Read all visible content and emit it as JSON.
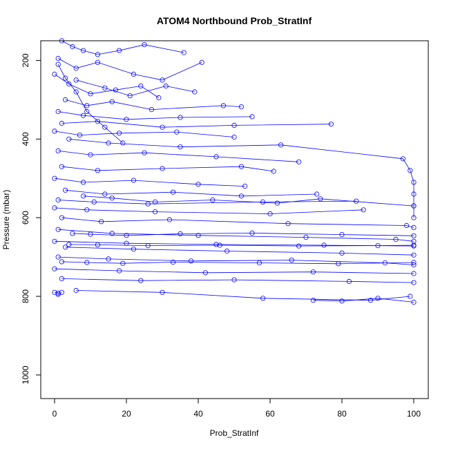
{
  "chart_data": {
    "type": "line",
    "title": "ATOM4 Northbound Prob_StratInf",
    "xlabel": "Prob_StratInf",
    "ylabel": "Pressure (mbar)",
    "xlim": [
      0,
      100
    ],
    "ylim": [
      150,
      1060
    ],
    "y_reversed": true,
    "x_ticks": [
      0,
      20,
      40,
      60,
      80,
      100
    ],
    "y_ticks": [
      200,
      400,
      600,
      800,
      1000
    ],
    "series_color": "#0000ff",
    "marker": "open-circle",
    "grid": false,
    "series": [
      {
        "name": "",
        "x": [
          2,
          5,
          8,
          12,
          18,
          25,
          36
        ],
        "y": [
          150,
          165,
          175,
          185,
          175,
          160,
          180
        ]
      },
      {
        "name": "",
        "x": [
          1,
          6,
          12,
          22,
          30,
          41
        ],
        "y": [
          195,
          220,
          205,
          235,
          250,
          205
        ]
      },
      {
        "name": "",
        "x": [
          0,
          4,
          10,
          17,
          24,
          29
        ],
        "y": [
          235,
          260,
          285,
          275,
          265,
          295
        ]
      },
      {
        "name": "",
        "x": [
          3,
          9,
          16,
          27,
          47,
          52
        ],
        "y": [
          300,
          315,
          305,
          325,
          315,
          318
        ]
      },
      {
        "name": "",
        "x": [
          1,
          8,
          20,
          35,
          55
        ],
        "y": [
          330,
          340,
          350,
          345,
          343
        ]
      },
      {
        "name": "",
        "x": [
          2,
          12,
          30,
          50,
          77
        ],
        "y": [
          360,
          355,
          370,
          365,
          362
        ]
      },
      {
        "name": "",
        "x": [
          0,
          7,
          18,
          34,
          50
        ],
        "y": [
          380,
          390,
          385,
          382,
          395
        ]
      },
      {
        "name": "",
        "x": [
          4,
          15,
          35,
          63,
          97,
          99,
          100,
          100,
          100,
          100
        ],
        "y": [
          400,
          410,
          420,
          415,
          450,
          480,
          510,
          540,
          570,
          600
        ]
      },
      {
        "name": "",
        "x": [
          1,
          10,
          25,
          45,
          68
        ],
        "y": [
          430,
          440,
          435,
          445,
          458
        ]
      },
      {
        "name": "",
        "x": [
          2,
          12,
          30,
          52,
          61
        ],
        "y": [
          470,
          480,
          475,
          470,
          482
        ]
      },
      {
        "name": "",
        "x": [
          0,
          8,
          22,
          40,
          53
        ],
        "y": [
          500,
          510,
          505,
          515,
          520
        ]
      },
      {
        "name": "",
        "x": [
          3,
          14,
          33,
          52,
          73
        ],
        "y": [
          530,
          540,
          535,
          545,
          540
        ]
      },
      {
        "name": "",
        "x": [
          1,
          11,
          26,
          58,
          84
        ],
        "y": [
          555,
          560,
          565,
          560,
          558
        ]
      },
      {
        "name": "",
        "x": [
          0,
          9,
          28,
          60,
          86
        ],
        "y": [
          575,
          580,
          585,
          590,
          580
        ]
      },
      {
        "name": "",
        "x": [
          2,
          13,
          32,
          65,
          98,
          100
        ],
        "y": [
          600,
          610,
          605,
          615,
          620,
          625
        ]
      },
      {
        "name": "",
        "x": [
          1,
          16,
          40,
          70,
          95,
          100
        ],
        "y": [
          630,
          640,
          645,
          650,
          655,
          660
        ]
      },
      {
        "name": "",
        "x": [
          0,
          20,
          45,
          75,
          100
        ],
        "y": [
          660,
          665,
          668,
          670,
          672
        ]
      },
      {
        "name": "",
        "x": [
          3,
          22,
          48,
          80,
          100
        ],
        "y": [
          675,
          680,
          685,
          690,
          695
        ]
      },
      {
        "name": "",
        "x": [
          1,
          15,
          38,
          66,
          92,
          100
        ],
        "y": [
          700,
          705,
          710,
          708,
          715,
          720
        ]
      },
      {
        "name": "",
        "x": [
          0,
          18,
          42,
          72,
          100
        ],
        "y": [
          730,
          735,
          740,
          738,
          742
        ]
      },
      {
        "name": "",
        "x": [
          2,
          24,
          50,
          82,
          100
        ],
        "y": [
          755,
          760,
          758,
          762,
          765
        ]
      },
      {
        "name": "",
        "x": [
          6,
          30,
          58,
          88,
          99
        ],
        "y": [
          785,
          790,
          805,
          810,
          800
        ]
      },
      {
        "name": "",
        "x": [
          0,
          1,
          1,
          2
        ],
        "y": [
          790,
          792,
          795,
          790
        ]
      },
      {
        "name": "",
        "x": [
          72,
          80,
          90,
          100
        ],
        "y": [
          810,
          812,
          805,
          815
        ]
      },
      {
        "name": "",
        "x": [
          5,
          10,
          20,
          35,
          55,
          80,
          100
        ],
        "y": [
          640,
          642,
          645,
          641,
          639,
          643,
          646
        ]
      },
      {
        "name": "",
        "x": [
          4,
          12,
          26,
          46,
          68,
          90,
          100
        ],
        "y": [
          668,
          669,
          671,
          670,
          672,
          671,
          670
        ]
      },
      {
        "name": "",
        "x": [
          2,
          9,
          19,
          33,
          57,
          79,
          100
        ],
        "y": [
          712,
          714,
          716,
          713,
          715,
          717,
          714
        ]
      },
      {
        "name": "",
        "x": [
          8,
          16,
          28,
          44,
          62,
          74,
          100
        ],
        "y": [
          545,
          550,
          560,
          555,
          563,
          552,
          570
        ]
      },
      {
        "name": "",
        "x": [
          6,
          14,
          21,
          31,
          39
        ],
        "y": [
          250,
          270,
          290,
          265,
          280
        ]
      },
      {
        "name": "",
        "x": [
          1,
          3,
          6,
          9,
          14,
          19
        ],
        "y": [
          210,
          245,
          280,
          330,
          370,
          410
        ]
      }
    ]
  }
}
